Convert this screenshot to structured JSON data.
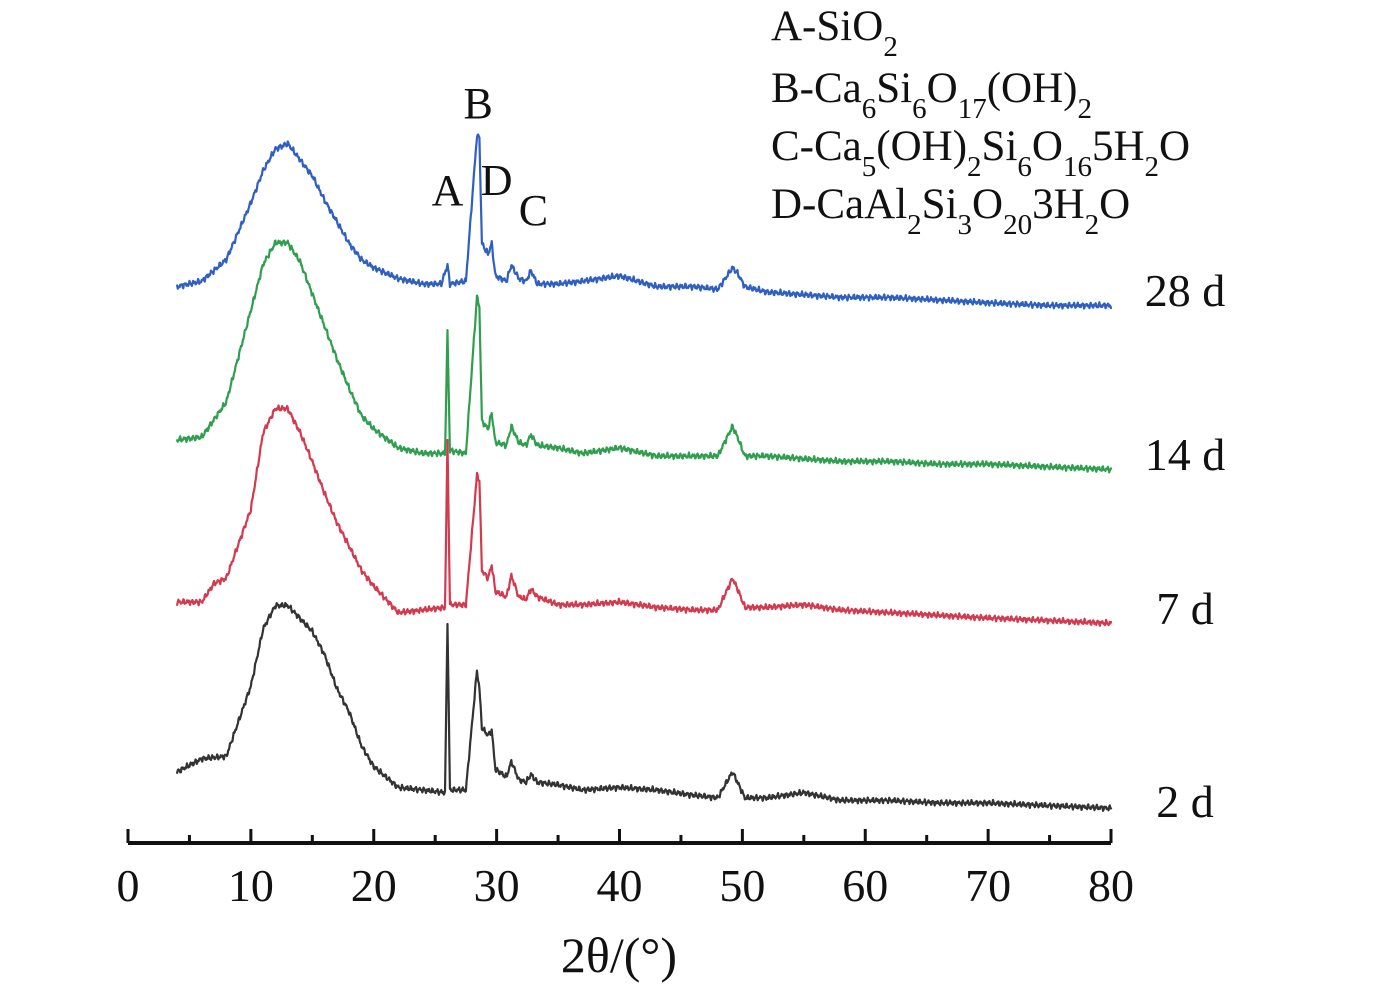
{
  "chart_data": {
    "type": "line",
    "title": "",
    "subtitle": "",
    "xlabel": "2θ/(°)",
    "ylabel": "",
    "xlim": [
      0,
      80
    ],
    "xticks": [
      0,
      10,
      20,
      30,
      40,
      50,
      60,
      70,
      80
    ],
    "grid": false,
    "legend_position": "top-right",
    "vertical_offset_stack": true,
    "series": [
      {
        "name": "28 d",
        "color": "#2f5fc0",
        "points": [
          [
            4,
            0.02
          ],
          [
            6,
            0.04
          ],
          [
            8,
            0.12
          ],
          [
            10,
            0.33
          ],
          [
            11,
            0.45
          ],
          [
            12,
            0.53
          ],
          [
            13,
            0.55
          ],
          [
            14,
            0.49
          ],
          [
            15,
            0.43
          ],
          [
            16,
            0.34
          ],
          [
            17,
            0.26
          ],
          [
            18,
            0.18
          ],
          [
            19,
            0.12
          ],
          [
            20,
            0.09
          ],
          [
            22,
            0.05
          ],
          [
            24,
            0.03
          ],
          [
            25.5,
            0.03
          ],
          [
            26,
            0.1
          ],
          [
            26.2,
            0.03
          ],
          [
            27.5,
            0.04
          ],
          [
            28.4,
            0.58
          ],
          [
            28.6,
            0.57
          ],
          [
            28.8,
            0.18
          ],
          [
            29.3,
            0.14
          ],
          [
            29.6,
            0.18
          ],
          [
            29.9,
            0.06
          ],
          [
            30.8,
            0.04
          ],
          [
            31.2,
            0.1
          ],
          [
            31.8,
            0.05
          ],
          [
            32.4,
            0.04
          ],
          [
            32.8,
            0.08
          ],
          [
            33.3,
            0.03
          ],
          [
            35,
            0.03
          ],
          [
            37,
            0.04
          ],
          [
            40,
            0.06
          ],
          [
            43,
            0.02
          ],
          [
            46,
            0.02
          ],
          [
            48,
            0.01
          ],
          [
            49.2,
            0.09
          ],
          [
            49.6,
            0.07
          ],
          [
            50.2,
            0.02
          ],
          [
            52,
            0.0
          ],
          [
            55,
            -0.01
          ],
          [
            58,
            -0.02
          ],
          [
            62,
            -0.02
          ],
          [
            66,
            -0.03
          ],
          [
            70,
            -0.04
          ],
          [
            75,
            -0.05
          ],
          [
            80,
            -0.05
          ]
        ]
      },
      {
        "name": "14 d",
        "color": "#2f9f4f",
        "points": [
          [
            4,
            0.06
          ],
          [
            6,
            0.07
          ],
          [
            8,
            0.2
          ],
          [
            10,
            0.54
          ],
          [
            11,
            0.71
          ],
          [
            12,
            0.79
          ],
          [
            13,
            0.79
          ],
          [
            14,
            0.72
          ],
          [
            15,
            0.6
          ],
          [
            16,
            0.48
          ],
          [
            17,
            0.36
          ],
          [
            18,
            0.25
          ],
          [
            19,
            0.15
          ],
          [
            20,
            0.1
          ],
          [
            22,
            0.03
          ],
          [
            24,
            0.01
          ],
          [
            25.8,
            0.01
          ],
          [
            26,
            0.46
          ],
          [
            26.2,
            0.02
          ],
          [
            27.5,
            0.01
          ],
          [
            28.4,
            0.59
          ],
          [
            28.6,
            0.55
          ],
          [
            28.8,
            0.13
          ],
          [
            29.3,
            0.1
          ],
          [
            29.6,
            0.16
          ],
          [
            29.9,
            0.05
          ],
          [
            30.8,
            0.04
          ],
          [
            31.2,
            0.11
          ],
          [
            31.8,
            0.05
          ],
          [
            32.4,
            0.04
          ],
          [
            32.8,
            0.08
          ],
          [
            33.3,
            0.04
          ],
          [
            35,
            0.03
          ],
          [
            37,
            0.01
          ],
          [
            40,
            0.03
          ],
          [
            43,
            0.0
          ],
          [
            46,
            0.0
          ],
          [
            48,
            0.0
          ],
          [
            49.2,
            0.11
          ],
          [
            49.6,
            0.07
          ],
          [
            50.2,
            0.0
          ],
          [
            52,
            0.0
          ],
          [
            55,
            -0.01
          ],
          [
            58,
            -0.02
          ],
          [
            62,
            -0.02
          ],
          [
            66,
            -0.03
          ],
          [
            70,
            -0.03
          ],
          [
            75,
            -0.04
          ],
          [
            80,
            -0.05
          ]
        ]
      },
      {
        "name": "7 d",
        "color": "#d23a4f",
        "points": [
          [
            4,
            0.03
          ],
          [
            6,
            0.03
          ],
          [
            7,
            0.1
          ],
          [
            8,
            0.12
          ],
          [
            10,
            0.38
          ],
          [
            11,
            0.67
          ],
          [
            12,
            0.76
          ],
          [
            13,
            0.76
          ],
          [
            14,
            0.67
          ],
          [
            15,
            0.56
          ],
          [
            16,
            0.44
          ],
          [
            17,
            0.33
          ],
          [
            18,
            0.24
          ],
          [
            19,
            0.15
          ],
          [
            20,
            0.09
          ],
          [
            22,
            -0.01
          ],
          [
            24,
            0.0
          ],
          [
            25.8,
            0.01
          ],
          [
            26,
            0.64
          ],
          [
            26.2,
            0.02
          ],
          [
            27.5,
            0.02
          ],
          [
            28.4,
            0.51
          ],
          [
            28.6,
            0.49
          ],
          [
            28.8,
            0.15
          ],
          [
            29.3,
            0.12
          ],
          [
            29.6,
            0.17
          ],
          [
            29.9,
            0.07
          ],
          [
            30.8,
            0.05
          ],
          [
            31.2,
            0.13
          ],
          [
            31.8,
            0.05
          ],
          [
            32.4,
            0.04
          ],
          [
            32.8,
            0.08
          ],
          [
            33.3,
            0.05
          ],
          [
            35,
            0.02
          ],
          [
            37,
            0.02
          ],
          [
            40,
            0.03
          ],
          [
            43,
            0.01
          ],
          [
            46,
            0.0
          ],
          [
            48,
            0.0
          ],
          [
            49.2,
            0.12
          ],
          [
            49.6,
            0.08
          ],
          [
            50.2,
            0.01
          ],
          [
            52,
            0.01
          ],
          [
            55,
            0.02
          ],
          [
            58,
            0.0
          ],
          [
            62,
            -0.01
          ],
          [
            66,
            -0.02
          ],
          [
            70,
            -0.03
          ],
          [
            75,
            -0.04
          ],
          [
            80,
            -0.05
          ]
        ]
      },
      {
        "name": "2 d",
        "color": "#333333",
        "points": [
          [
            4,
            0.12
          ],
          [
            6,
            0.17
          ],
          [
            8,
            0.18
          ],
          [
            10,
            0.45
          ],
          [
            11,
            0.67
          ],
          [
            12,
            0.76
          ],
          [
            13,
            0.76
          ],
          [
            14,
            0.71
          ],
          [
            15,
            0.66
          ],
          [
            16,
            0.57
          ],
          [
            17,
            0.44
          ],
          [
            18,
            0.35
          ],
          [
            19,
            0.22
          ],
          [
            20,
            0.14
          ],
          [
            22,
            0.06
          ],
          [
            24,
            0.05
          ],
          [
            25.8,
            0.04
          ],
          [
            26,
            0.7
          ],
          [
            26.2,
            0.05
          ],
          [
            27.5,
            0.05
          ],
          [
            28.4,
            0.51
          ],
          [
            28.6,
            0.44
          ],
          [
            28.8,
            0.29
          ],
          [
            29.3,
            0.26
          ],
          [
            29.6,
            0.28
          ],
          [
            29.9,
            0.13
          ],
          [
            30.8,
            0.1
          ],
          [
            31.2,
            0.16
          ],
          [
            31.8,
            0.09
          ],
          [
            32.4,
            0.08
          ],
          [
            32.8,
            0.11
          ],
          [
            33.3,
            0.08
          ],
          [
            35,
            0.07
          ],
          [
            37,
            0.05
          ],
          [
            40,
            0.06
          ],
          [
            43,
            0.05
          ],
          [
            46,
            0.03
          ],
          [
            48,
            0.02
          ],
          [
            49.2,
            0.12
          ],
          [
            49.6,
            0.08
          ],
          [
            50.2,
            0.02
          ],
          [
            52,
            0.02
          ],
          [
            55,
            0.04
          ],
          [
            58,
            0.01
          ],
          [
            62,
            0.01
          ],
          [
            66,
            0.0
          ],
          [
            70,
            0.0
          ],
          [
            75,
            -0.01
          ],
          [
            80,
            -0.02
          ]
        ]
      }
    ],
    "peak_labels": [
      {
        "text": "A",
        "x": 26.0
      },
      {
        "text": "B",
        "x": 28.5
      },
      {
        "text": "D",
        "x": 30.0
      },
      {
        "text": "C",
        "x": 33.0
      }
    ],
    "legend": [
      {
        "prefix": "A-",
        "formula": [
          [
            "Si",
            ""
          ],
          [
            "O",
            "2"
          ]
        ]
      },
      {
        "prefix": "B-",
        "formula": [
          [
            "Ca",
            "6"
          ],
          [
            "Si",
            "6"
          ],
          [
            "O",
            "17"
          ],
          [
            "(OH)",
            "2"
          ]
        ]
      },
      {
        "prefix": "C-",
        "formula": [
          [
            "Ca",
            "5"
          ],
          [
            "(OH)",
            "2"
          ],
          [
            "Si",
            "6"
          ],
          [
            "O",
            "16"
          ],
          [
            "5H",
            "2"
          ],
          [
            "O",
            ""
          ]
        ]
      },
      {
        "prefix": "D-",
        "formula": [
          [
            "CaAl",
            "2"
          ],
          [
            "Si",
            "3"
          ],
          [
            "O",
            "20"
          ],
          [
            "3H",
            "2"
          ],
          [
            "O",
            ""
          ]
        ]
      }
    ]
  }
}
